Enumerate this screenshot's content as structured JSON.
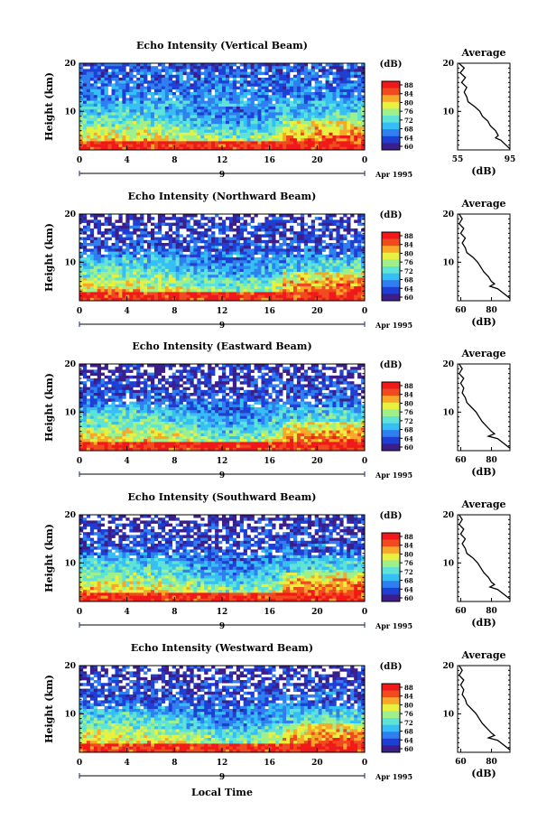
{
  "chart_data": [
    {
      "type": "heatmap",
      "title": "Echo Intensity (Vertical Beam)",
      "ylabel": "Height (km)",
      "yticks": [
        "20",
        "10"
      ],
      "ylim": [
        2,
        20
      ],
      "xticks": [
        "0",
        "4",
        "8",
        "12",
        "16",
        "20",
        "0"
      ],
      "xlim": [
        0,
        24
      ],
      "day_label": "9",
      "date_label": "Apr 1995",
      "colorbar": {
        "unit": "(dB)",
        "ticks": [
          "88",
          "84",
          "80",
          "76",
          "72",
          "68",
          "64",
          "60"
        ]
      },
      "average": {
        "title": "Average",
        "xlabel": "(dB)",
        "xticks": [
          "55",
          "95"
        ],
        "yticks": [
          "20",
          "10"
        ],
        "xlim": [
          55,
          95
        ],
        "profile": [
          [
            56,
            20
          ],
          [
            60,
            19
          ],
          [
            57,
            18
          ],
          [
            61,
            17
          ],
          [
            58,
            16
          ],
          [
            62,
            15
          ],
          [
            60,
            14
          ],
          [
            62,
            13
          ],
          [
            63,
            12
          ],
          [
            68,
            11
          ],
          [
            72,
            10
          ],
          [
            74,
            9
          ],
          [
            78,
            8
          ],
          [
            80,
            7
          ],
          [
            84,
            6
          ],
          [
            86,
            5
          ],
          [
            84,
            4.5
          ],
          [
            88,
            4
          ],
          [
            92,
            3
          ],
          [
            95,
            2.2
          ]
        ]
      }
    },
    {
      "type": "heatmap",
      "title": "Echo Intensity (Northward Beam)",
      "ylabel": "Height (km)",
      "yticks": [
        "20",
        "10"
      ],
      "ylim": [
        2,
        20
      ],
      "xticks": [
        "0",
        "4",
        "8",
        "12",
        "16",
        "20",
        "0"
      ],
      "xlim": [
        0,
        24
      ],
      "day_label": "9",
      "date_label": "Apr 1995",
      "colorbar": {
        "unit": "(dB)",
        "ticks": [
          "88",
          "84",
          "80",
          "76",
          "72",
          "68",
          "64",
          "60"
        ]
      },
      "average": {
        "title": "Average",
        "xlabel": "(dB)",
        "xticks": [
          "60",
          "80"
        ],
        "yticks": [
          "20",
          "10"
        ],
        "xlim": [
          58,
          92
        ],
        "profile": [
          [
            59,
            20
          ],
          [
            61,
            19
          ],
          [
            59,
            18
          ],
          [
            62,
            17
          ],
          [
            60,
            16
          ],
          [
            63,
            15
          ],
          [
            61,
            14
          ],
          [
            63,
            13
          ],
          [
            64,
            12
          ],
          [
            68,
            11
          ],
          [
            71,
            10
          ],
          [
            73,
            9
          ],
          [
            75,
            8
          ],
          [
            78,
            7
          ],
          [
            80,
            6
          ],
          [
            82,
            5.5
          ],
          [
            79,
            5
          ],
          [
            84,
            4.5
          ],
          [
            88,
            3.5
          ],
          [
            92,
            2.5
          ]
        ]
      }
    },
    {
      "type": "heatmap",
      "title": "Echo Intensity (Eastward Beam)",
      "ylabel": "Height (km)",
      "yticks": [
        "20",
        "10"
      ],
      "ylim": [
        2,
        20
      ],
      "xticks": [
        "0",
        "4",
        "8",
        "12",
        "16",
        "20",
        "0"
      ],
      "xlim": [
        0,
        24
      ],
      "day_label": "9",
      "date_label": "Apr 1995",
      "colorbar": {
        "unit": "(dB)",
        "ticks": [
          "88",
          "84",
          "80",
          "76",
          "72",
          "68",
          "64",
          "60"
        ]
      },
      "average": {
        "title": "Average",
        "xlabel": "(dB)",
        "xticks": [
          "60",
          "80"
        ],
        "yticks": [
          "20",
          "10"
        ],
        "xlim": [
          58,
          92
        ],
        "profile": [
          [
            59,
            20
          ],
          [
            61,
            19
          ],
          [
            59,
            18
          ],
          [
            62,
            17
          ],
          [
            60,
            16
          ],
          [
            62,
            15
          ],
          [
            61,
            14
          ],
          [
            63,
            13
          ],
          [
            64,
            12
          ],
          [
            67,
            11
          ],
          [
            70,
            10
          ],
          [
            72,
            9
          ],
          [
            74,
            8
          ],
          [
            77,
            7
          ],
          [
            80,
            6
          ],
          [
            82,
            5.5
          ],
          [
            78,
            5
          ],
          [
            84,
            4.5
          ],
          [
            88,
            3.5
          ],
          [
            92,
            2.5
          ]
        ]
      }
    },
    {
      "type": "heatmap",
      "title": "Echo Intensity (Southward Beam)",
      "ylabel": "Height (km)",
      "yticks": [
        "20",
        "10"
      ],
      "ylim": [
        2,
        20
      ],
      "xticks": [
        "0",
        "4",
        "8",
        "12",
        "16",
        "20",
        "0"
      ],
      "xlim": [
        0,
        24
      ],
      "day_label": "9",
      "date_label": "Apr 1995",
      "colorbar": {
        "unit": "(dB)",
        "ticks": [
          "88",
          "84",
          "80",
          "76",
          "72",
          "68",
          "64",
          "60"
        ]
      },
      "average": {
        "title": "Average",
        "xlabel": "(dB)",
        "xticks": [
          "60",
          "80"
        ],
        "yticks": [
          "20",
          "10"
        ],
        "xlim": [
          58,
          92
        ],
        "profile": [
          [
            59,
            20
          ],
          [
            61,
            19
          ],
          [
            59,
            18
          ],
          [
            62,
            17
          ],
          [
            60,
            16
          ],
          [
            63,
            15
          ],
          [
            61,
            14
          ],
          [
            63,
            13
          ],
          [
            64,
            12
          ],
          [
            68,
            11
          ],
          [
            71,
            10
          ],
          [
            73,
            9
          ],
          [
            75,
            8
          ],
          [
            78,
            7
          ],
          [
            80,
            6
          ],
          [
            82,
            5.5
          ],
          [
            79,
            5
          ],
          [
            84,
            4.5
          ],
          [
            88,
            3.5
          ],
          [
            92,
            2.5
          ]
        ]
      }
    },
    {
      "type": "heatmap",
      "title": "Echo Intensity (Westward Beam)",
      "ylabel": "Height (km)",
      "yticks": [
        "20",
        "10"
      ],
      "ylim": [
        2,
        20
      ],
      "xticks": [
        "0",
        "4",
        "8",
        "12",
        "16",
        "20",
        "0"
      ],
      "xlim": [
        0,
        24
      ],
      "day_label": "9",
      "date_label": "Apr 1995",
      "xlabel": "Local Time",
      "colorbar": {
        "unit": "(dB)",
        "ticks": [
          "88",
          "84",
          "80",
          "76",
          "72",
          "68",
          "64",
          "60"
        ]
      },
      "average": {
        "title": "Average",
        "xlabel": "(dB)",
        "xticks": [
          "60",
          "80"
        ],
        "yticks": [
          "20",
          "10"
        ],
        "xlim": [
          58,
          92
        ],
        "profile": [
          [
            59,
            20
          ],
          [
            61,
            19
          ],
          [
            59,
            18
          ],
          [
            62,
            17
          ],
          [
            60,
            16
          ],
          [
            62,
            15
          ],
          [
            61,
            14
          ],
          [
            63,
            13
          ],
          [
            64,
            12
          ],
          [
            67,
            11
          ],
          [
            70,
            10
          ],
          [
            72,
            9
          ],
          [
            74,
            8
          ],
          [
            77,
            7
          ],
          [
            80,
            6
          ],
          [
            82,
            5.5
          ],
          [
            78,
            5
          ],
          [
            84,
            4.5
          ],
          [
            88,
            3.5
          ],
          [
            92,
            2.5
          ]
        ]
      }
    }
  ],
  "colors": {
    "colormap": [
      "#3b1e8a",
      "#1f3fd4",
      "#2f7ff0",
      "#35bff5",
      "#5fe3d6",
      "#9ff08a",
      "#e8f040",
      "#f7a828",
      "#f04a1e",
      "#f01818"
    ],
    "line": "#000000"
  }
}
